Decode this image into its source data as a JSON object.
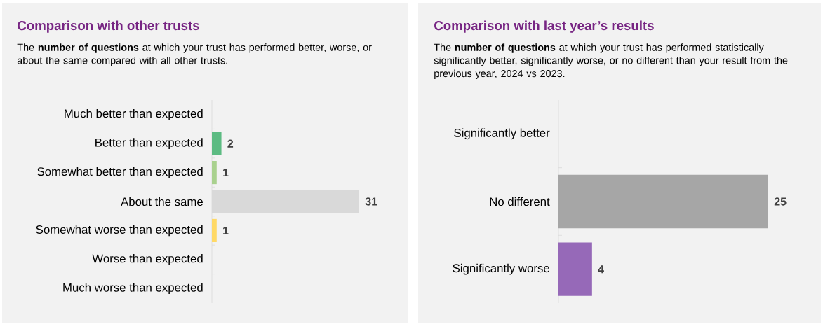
{
  "chart_data": [
    {
      "type": "bar",
      "orientation": "horizontal",
      "title": "Comparison with other trusts",
      "subtitle": "The **number of questions** at which your trust has performed better, worse, or about the same compared with all other trusts.",
      "categories": [
        "Much better than expected",
        "Better than expected",
        "Somewhat better than expected",
        "About the same",
        "Somewhat worse than expected",
        "Worse than expected",
        "Much worse than expected"
      ],
      "values": [
        0,
        2,
        1,
        31,
        1,
        0,
        0
      ],
      "colors": [
        null,
        "#5cbb82",
        "#a9d18e",
        "#d9d9d9",
        "#ffd966",
        null,
        null
      ],
      "value_labels": [
        null,
        "2",
        "1",
        "31",
        "1",
        null,
        null
      ]
    },
    {
      "type": "bar",
      "orientation": "horizontal",
      "title": "Comparison with last year’s results",
      "subtitle": "The **number of questions** at which your trust has performed statistically significantly better, significantly worse, or no different than your result from the previous year, 2024 vs 2023.",
      "categories": [
        "Significantly better",
        "No different",
        "Significantly worse"
      ],
      "values": [
        0,
        25,
        4
      ],
      "colors": [
        null,
        "#a6a6a6",
        "#9669b8"
      ],
      "value_labels": [
        null,
        "25",
        "4"
      ]
    }
  ]
}
